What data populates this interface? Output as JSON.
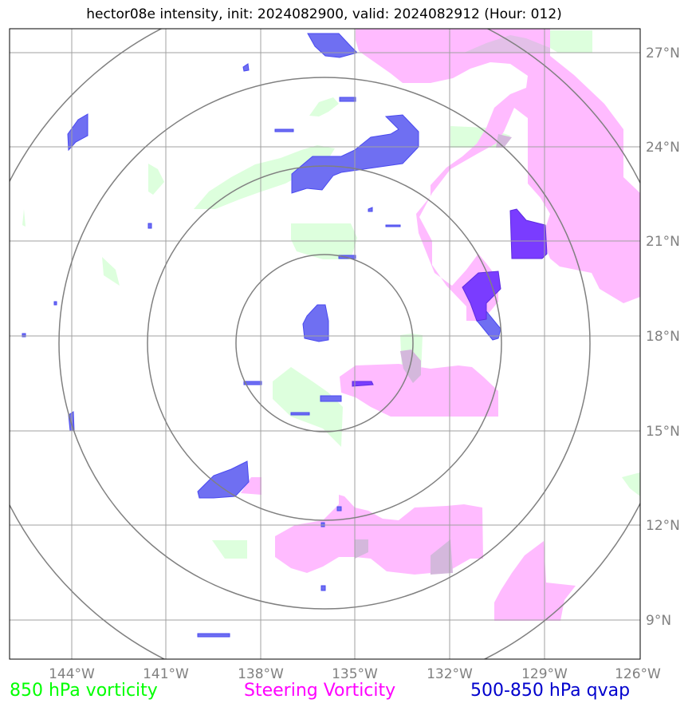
{
  "title": "hector08e intensity, init: 2024082900, valid: 2024082912 (Hour: 012)",
  "lon_ticks": [
    "144°W",
    "141°W",
    "138°W",
    "135°W",
    "132°W",
    "129°W",
    "126°W"
  ],
  "lat_ticks": [
    "27°N",
    "24°N",
    "21°N",
    "18°N",
    "15°N",
    "12°N",
    "9°N"
  ],
  "legend": {
    "vorticity_850": {
      "label": "850 hPa vorticity",
      "color": "#00ff00"
    },
    "steering": {
      "label": "Steering Vorticity",
      "color": "#ff00ff"
    },
    "qvap": {
      "label": "500-850 hPa qvap",
      "color": "#0000cd"
    }
  },
  "colors": {
    "vorticity_fill": "#ddffdd",
    "steering_fill": "#ffbbff",
    "qvap_fill": "#6f6ff2",
    "overlap_fill": "#7a3cff",
    "grid": "#a0a0a0",
    "rings": "#808080"
  },
  "map_extent": {
    "lon": [
      -146,
      -126
    ],
    "lat": [
      7.5,
      27.5
    ]
  },
  "storm_center": {
    "lon": -136,
    "lat": 18
  },
  "range_rings_deg": [
    2.8,
    5.6,
    8.4,
    11.2
  ]
}
